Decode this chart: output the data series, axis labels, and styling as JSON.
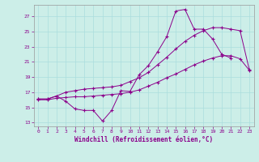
{
  "xlabel": "Windchill (Refroidissement éolien,°C)",
  "bg_color": "#cceee8",
  "line_color": "#8b008b",
  "grid_color": "#aadddd",
  "xlim": [
    -0.5,
    23.5
  ],
  "ylim": [
    12.5,
    28.5
  ],
  "yticks": [
    13,
    15,
    17,
    19,
    21,
    23,
    25,
    27
  ],
  "xticks": [
    0,
    1,
    2,
    3,
    4,
    5,
    6,
    7,
    8,
    9,
    10,
    11,
    12,
    13,
    14,
    15,
    16,
    17,
    18,
    19,
    20,
    21,
    22,
    23
  ],
  "line1_x": [
    0,
    1,
    2,
    3,
    4,
    5,
    6,
    7,
    8,
    9,
    10,
    11,
    12,
    13,
    14,
    15,
    16,
    17,
    18,
    19,
    20,
    21
  ],
  "line1_y": [
    16.1,
    16.1,
    16.5,
    15.8,
    14.8,
    14.6,
    14.6,
    13.2,
    14.6,
    17.2,
    17.1,
    19.3,
    20.5,
    22.3,
    24.3,
    27.7,
    27.9,
    25.3,
    25.3,
    24.0,
    22.0,
    21.5
  ],
  "line2_x": [
    0,
    1,
    2,
    3,
    4,
    5,
    6,
    7,
    8,
    9,
    10,
    11,
    12,
    13,
    14,
    15,
    16,
    17,
    18,
    19,
    20,
    21,
    22,
    23
  ],
  "line2_y": [
    16.1,
    16.1,
    16.5,
    17.0,
    17.2,
    17.4,
    17.5,
    17.6,
    17.7,
    17.9,
    18.4,
    18.9,
    19.6,
    20.6,
    21.6,
    22.7,
    23.7,
    24.5,
    25.1,
    25.5,
    25.5,
    25.3,
    25.1,
    20.0
  ],
  "line3_x": [
    0,
    1,
    2,
    3,
    4,
    5,
    6,
    7,
    8,
    9,
    10,
    11,
    12,
    13,
    14,
    15,
    16,
    17,
    18,
    19,
    20,
    21,
    22,
    23
  ],
  "line3_y": [
    16.0,
    16.0,
    16.2,
    16.3,
    16.4,
    16.4,
    16.5,
    16.6,
    16.7,
    16.8,
    17.0,
    17.3,
    17.8,
    18.3,
    18.9,
    19.4,
    20.0,
    20.6,
    21.1,
    21.5,
    21.8,
    21.8,
    21.4,
    19.9
  ]
}
